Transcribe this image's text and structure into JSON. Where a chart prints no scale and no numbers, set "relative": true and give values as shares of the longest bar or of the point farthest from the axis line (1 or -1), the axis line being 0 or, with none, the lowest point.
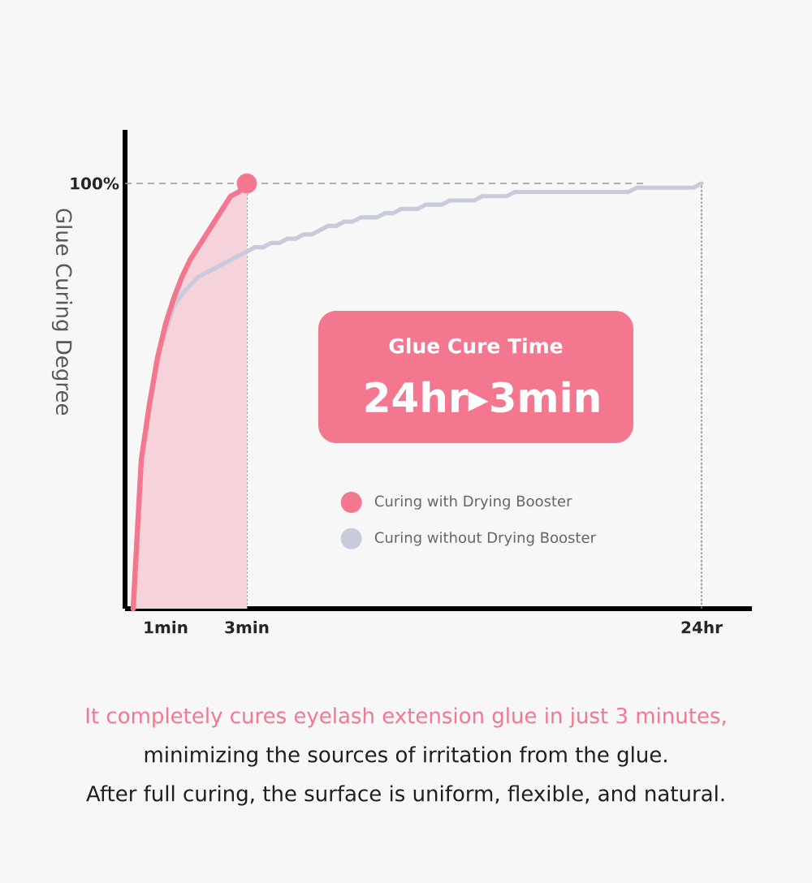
{
  "chart_data": {
    "type": "line",
    "relative": true,
    "ylabel": "Glue Curing Degree",
    "categories": [
      null,
      null,
      null,
      null,
      null,
      "1min",
      null,
      null,
      null,
      null,
      null,
      null,
      null,
      null,
      null,
      "3min",
      null,
      null,
      null,
      null,
      null,
      null,
      null,
      null,
      null,
      null,
      null,
      null,
      null,
      null,
      null,
      null,
      null,
      null,
      null,
      null,
      null,
      null,
      null,
      null,
      null,
      null,
      null,
      null,
      null,
      null,
      null,
      null,
      null,
      null,
      null,
      null,
      null,
      null,
      null,
      null,
      null,
      null,
      null,
      null,
      null,
      null,
      null,
      null,
      null,
      null,
      null,
      null,
      null,
      null,
      null,
      "24hr",
      null,
      null,
      null,
      null,
      null,
      null
    ],
    "series": [
      {
        "name": "Curing with Drying Booster",
        "type": "area",
        "color": "#f47790",
        "values": [
          null,
          0,
          0.35,
          0.48,
          0.59,
          0.67,
          0.73,
          0.78,
          0.82,
          0.85,
          0.88,
          0.91,
          0.94,
          0.97,
          0.98,
          1.0,
          null,
          null,
          null,
          null,
          null,
          null,
          null,
          null,
          null,
          null,
          null,
          null,
          null,
          null,
          null,
          null,
          null,
          null,
          null,
          null,
          null,
          null,
          null,
          null,
          null,
          null,
          null,
          null,
          null,
          null,
          null,
          null,
          null,
          null,
          null,
          null,
          null,
          null,
          null,
          null,
          null,
          null,
          null,
          null,
          null,
          null,
          null,
          null,
          null,
          null,
          null,
          null,
          null,
          null,
          null,
          null,
          null,
          null,
          null,
          null,
          null,
          null
        ]
      },
      {
        "name": "Curing without Drying Booster",
        "color": "#c8cbdc",
        "values": [
          null,
          null,
          null,
          null,
          null,
          0.65,
          0.71,
          0.74,
          0.76,
          0.78,
          0.79,
          0.8,
          0.81,
          0.82,
          0.83,
          0.84,
          0.85,
          0.85,
          0.86,
          0.86,
          0.87,
          0.87,
          0.88,
          0.88,
          0.89,
          0.9,
          0.9,
          0.91,
          0.91,
          0.92,
          0.92,
          0.92,
          0.93,
          0.93,
          0.94,
          0.94,
          0.94,
          0.95,
          0.95,
          0.95,
          0.96,
          0.96,
          0.96,
          0.96,
          0.97,
          0.97,
          0.97,
          0.97,
          0.98,
          0.98,
          0.98,
          0.98,
          0.98,
          0.98,
          0.98,
          0.98,
          0.98,
          0.98,
          0.98,
          0.98,
          0.98,
          0.98,
          0.98,
          0.99,
          0.99,
          0.99,
          0.99,
          0.99,
          0.99,
          0.99,
          0.99,
          1.0,
          null,
          null,
          null,
          null,
          null,
          null
        ]
      },
      {
        "type": "scatter",
        "color": "#f47790",
        "values": [
          null,
          null,
          null,
          null,
          null,
          null,
          null,
          null,
          null,
          null,
          null,
          null,
          null,
          null,
          null,
          1.0,
          null,
          null,
          null,
          null,
          null,
          null,
          null,
          null,
          null,
          null,
          null,
          null,
          null,
          null,
          null,
          null,
          null,
          null,
          null,
          null,
          null,
          null,
          null,
          null,
          null,
          null,
          null,
          null,
          null,
          null,
          null,
          null,
          null,
          null,
          null,
          null,
          null,
          null,
          null,
          null,
          null,
          null,
          null,
          null,
          null,
          null,
          null,
          null,
          null,
          null,
          null,
          null,
          null,
          null,
          null,
          null,
          null,
          null,
          null,
          null,
          null,
          null
        ]
      }
    ],
    "ref_lines": [
      {
        "axis": "y",
        "value": 1,
        "label": "100%",
        "line_style": "dashed",
        "color": "#999999"
      },
      {
        "axis": "x",
        "value": "3min",
        "line_style": "dotted",
        "color": "#888888"
      },
      {
        "axis": "x",
        "value": "24hr",
        "line_style": "dotted",
        "color": "#888888"
      }
    ],
    "legend": "bottom",
    "annotations": [
      "Glue Cure Time",
      "24hr▸3min",
      "It completely cures eyelash extension glue in just 3 minutes,",
      "minimizing the sources of irritation from the glue.",
      "After full curing, the surface is uniform, flexible, and natural."
    ]
  }
}
